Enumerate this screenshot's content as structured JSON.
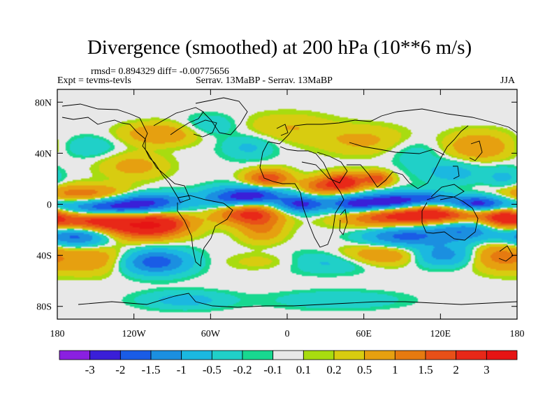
{
  "chart_data": {
    "type": "heatmap",
    "title": "Divergence (smoothed) at 200 hPa (10**6 m/s)",
    "stats": "rmsd= 0.894329 diff= -0.00775656",
    "experiment": "Expt = tevms-tevls",
    "case": "Serrav.   13MaBP - Serrav.   13MaBP",
    "season": "JJA",
    "x_range": [
      -180,
      180
    ],
    "y_range": [
      -90,
      90
    ],
    "x_ticks": [
      {
        "value": -180,
        "label": "180"
      },
      {
        "value": -120,
        "label": "120W"
      },
      {
        "value": -60,
        "label": "60W"
      },
      {
        "value": 0,
        "label": "0"
      },
      {
        "value": 60,
        "label": "60E"
      },
      {
        "value": 120,
        "label": "120E"
      },
      {
        "value": 180,
        "label": "180"
      }
    ],
    "y_ticks": [
      {
        "value": 80,
        "label": "80N"
      },
      {
        "value": 40,
        "label": "40N"
      },
      {
        "value": 0,
        "label": "0"
      },
      {
        "value": -40,
        "label": "40S"
      },
      {
        "value": -80,
        "label": "80S"
      }
    ],
    "colorbar": {
      "colors": [
        "#8a20e0",
        "#3a1fd8",
        "#1a5ce6",
        "#1b8fe0",
        "#1bb8e0",
        "#20d0c8",
        "#18d890",
        "#e8e8e8",
        "#a8dc10",
        "#d8cc10",
        "#e6a010",
        "#e67a10",
        "#e85018",
        "#e82818",
        "#e61414"
      ],
      "labels": [
        "-3",
        "-2",
        "-1.5",
        "-1",
        "-0.5",
        "-0.2",
        "-0.1",
        "0.1",
        "0.2",
        "0.5",
        "1",
        "1.5",
        "2",
        "3"
      ]
    },
    "features": [
      {
        "lon": -140,
        "lat": -3,
        "slon": 28,
        "slat": 5,
        "v": -2.3
      },
      {
        "lon": -108,
        "lat": 3,
        "slon": 22,
        "slat": 5,
        "v": -1.6
      },
      {
        "lon": -160,
        "lat": 8,
        "slon": 28,
        "slat": 5,
        "v": 1.4
      },
      {
        "lon": -145,
        "lat": -13,
        "slon": 30,
        "slat": 6,
        "v": 2.6
      },
      {
        "lon": -110,
        "lat": -20,
        "slon": 20,
        "slat": 6,
        "v": 1.8
      },
      {
        "lon": -95,
        "lat": -14,
        "slon": 15,
        "slat": 5,
        "v": 1.2
      },
      {
        "lon": -165,
        "lat": -25,
        "slon": 18,
        "slat": 6,
        "v": -1.9
      },
      {
        "lon": -105,
        "lat": -45,
        "slon": 20,
        "slat": 7,
        "v": -2.0
      },
      {
        "lon": -150,
        "lat": -43,
        "slon": 25,
        "slat": 8,
        "v": 1.0
      },
      {
        "lon": -40,
        "lat": 5,
        "slon": 18,
        "slat": 6,
        "v": -2.0
      },
      {
        "lon": -20,
        "lat": 8,
        "slon": 14,
        "slat": 5,
        "v": -1.2
      },
      {
        "lon": -30,
        "lat": -7,
        "slon": 18,
        "slat": 6,
        "v": 2.3
      },
      {
        "lon": -20,
        "lat": -20,
        "slon": 12,
        "slat": 7,
        "v": 1.0
      },
      {
        "lon": 10,
        "lat": 0,
        "slon": 14,
        "slat": 5,
        "v": -2.2
      },
      {
        "lon": 25,
        "lat": 14,
        "slon": 10,
        "slat": 5,
        "v": 1.4
      },
      {
        "lon": -15,
        "lat": 20,
        "slon": 12,
        "slat": 5,
        "v": 2.0
      },
      {
        "lon": 45,
        "lat": 17,
        "slon": 10,
        "slat": 5,
        "v": 2.6
      },
      {
        "lon": 70,
        "lat": 20,
        "slon": 8,
        "slat": 4,
        "v": 1.8
      },
      {
        "lon": 55,
        "lat": 0,
        "slon": 16,
        "slat": 5,
        "v": -2.4
      },
      {
        "lon": 85,
        "lat": 2,
        "slon": 14,
        "slat": 5,
        "v": -2.2
      },
      {
        "lon": 150,
        "lat": 0,
        "slon": 18,
        "slat": 5,
        "v": -2.6
      },
      {
        "lon": 110,
        "lat": 5,
        "slon": 12,
        "slat": 4,
        "v": -1.3
      },
      {
        "lon": 120,
        "lat": -8,
        "slon": 28,
        "slat": 5,
        "v": 2.5
      },
      {
        "lon": 75,
        "lat": -10,
        "slon": 25,
        "slat": 6,
        "v": 1.6
      },
      {
        "lon": 170,
        "lat": -10,
        "slon": 12,
        "slat": 6,
        "v": 2.0
      },
      {
        "lon": 140,
        "lat": -20,
        "slon": 20,
        "slat": 7,
        "v": -1.5
      },
      {
        "lon": 90,
        "lat": -25,
        "slon": 22,
        "slat": 6,
        "v": -1.7
      },
      {
        "lon": 75,
        "lat": -40,
        "slon": 25,
        "slat": 6,
        "v": 1.2
      },
      {
        "lon": 120,
        "lat": -40,
        "slon": 18,
        "slat": 6,
        "v": -1.4
      },
      {
        "lon": 165,
        "lat": -40,
        "slon": 15,
        "slat": 8,
        "v": 1.1
      },
      {
        "lon": 30,
        "lat": -45,
        "slon": 30,
        "slat": 6,
        "v": -0.8
      },
      {
        "lon": -10,
        "lat": -45,
        "slon": 25,
        "slat": 5,
        "v": 0.5
      },
      {
        "lon": 130,
        "lat": 25,
        "slon": 18,
        "slat": 7,
        "v": -0.7
      },
      {
        "lon": 150,
        "lat": 45,
        "slon": 18,
        "slat": 8,
        "v": 1.0
      },
      {
        "lon": 170,
        "lat": 20,
        "slon": 10,
        "slat": 7,
        "v": -0.6
      },
      {
        "lon": -100,
        "lat": 55,
        "slon": 20,
        "slat": 6,
        "v": 1.0
      },
      {
        "lon": -120,
        "lat": 30,
        "slon": 18,
        "slat": 7,
        "v": 0.7
      },
      {
        "lon": -155,
        "lat": 45,
        "slon": 15,
        "slat": 6,
        "v": -0.5
      },
      {
        "lon": -30,
        "lat": 45,
        "slon": 15,
        "slat": 7,
        "v": -0.6
      },
      {
        "lon": 0,
        "lat": 60,
        "slon": 25,
        "slat": 8,
        "v": 0.5
      },
      {
        "lon": 60,
        "lat": 50,
        "slon": 25,
        "slat": 8,
        "v": 0.6
      },
      {
        "lon": 100,
        "lat": 40,
        "slon": 15,
        "slat": 8,
        "v": -0.4
      },
      {
        "lon": -60,
        "lat": 62,
        "slon": 15,
        "slat": 6,
        "v": -0.5
      },
      {
        "lon": -80,
        "lat": -75,
        "slon": 25,
        "slat": 5,
        "v": -0.7
      },
      {
        "lon": 40,
        "lat": -75,
        "slon": 35,
        "slat": 5,
        "v": -0.5
      }
    ]
  }
}
